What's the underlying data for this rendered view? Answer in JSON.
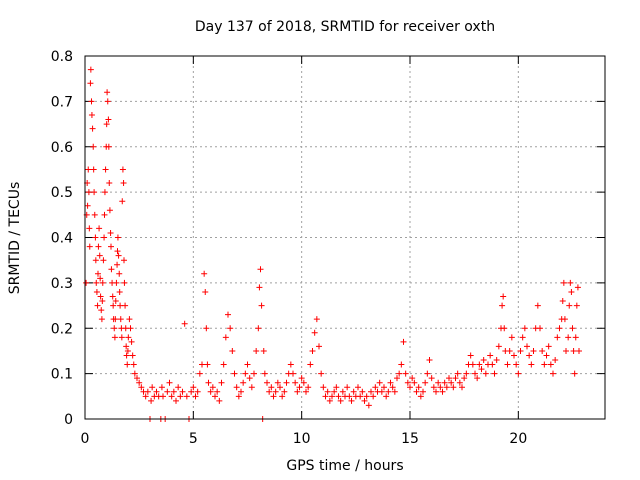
{
  "chart_data": {
    "type": "scatter",
    "title": "Day 137 of 2018, SRMTID for receiver oxth",
    "xlabel": "GPS time / hours",
    "ylabel": "SRMTID / TECUs",
    "xlim": [
      0,
      24
    ],
    "ylim": [
      0,
      0.8
    ],
    "xticks": [
      0,
      5,
      10,
      15,
      20
    ],
    "yticks": [
      0,
      0.1,
      0.2,
      0.3,
      0.4,
      0.5,
      0.6,
      0.7,
      0.8
    ],
    "xtick_labels": [
      "0",
      "5",
      "10",
      "15",
      "20"
    ],
    "ytick_labels": [
      "0",
      "0.1",
      "0.2",
      "0.3",
      "0.4",
      "0.5",
      "0.6",
      "0.7",
      "0.8"
    ],
    "grid": true,
    "marker": "+",
    "color": "#ff0000",
    "series": [
      {
        "name": "SRMTID",
        "points": [
          [
            0.05,
            0.3
          ],
          [
            0.08,
            0.45
          ],
          [
            0.1,
            0.52
          ],
          [
            0.12,
            0.47
          ],
          [
            0.15,
            0.55
          ],
          [
            0.18,
            0.5
          ],
          [
            0.2,
            0.42
          ],
          [
            0.22,
            0.38
          ],
          [
            0.25,
            0.74
          ],
          [
            0.27,
            0.77
          ],
          [
            0.3,
            0.7
          ],
          [
            0.32,
            0.67
          ],
          [
            0.35,
            0.64
          ],
          [
            0.38,
            0.6
          ],
          [
            0.4,
            0.55
          ],
          [
            0.42,
            0.5
          ],
          [
            0.45,
            0.45
          ],
          [
            0.48,
            0.4
          ],
          [
            0.5,
            0.35
          ],
          [
            0.52,
            0.3
          ],
          [
            0.55,
            0.28
          ],
          [
            0.58,
            0.25
          ],
          [
            0.6,
            0.32
          ],
          [
            0.62,
            0.38
          ],
          [
            0.65,
            0.42
          ],
          [
            0.68,
            0.36
          ],
          [
            0.7,
            0.31
          ],
          [
            0.72,
            0.27
          ],
          [
            0.75,
            0.24
          ],
          [
            0.78,
            0.22
          ],
          [
            0.8,
            0.26
          ],
          [
            0.82,
            0.3
          ],
          [
            0.85,
            0.35
          ],
          [
            0.88,
            0.4
          ],
          [
            0.9,
            0.45
          ],
          [
            0.92,
            0.5
          ],
          [
            0.95,
            0.55
          ],
          [
            0.98,
            0.6
          ],
          [
            1.0,
            0.65
          ],
          [
            1.02,
            0.72
          ],
          [
            1.05,
            0.7
          ],
          [
            1.08,
            0.66
          ],
          [
            1.1,
            0.6
          ],
          [
            1.12,
            0.52
          ],
          [
            1.15,
            0.46
          ],
          [
            1.18,
            0.41
          ],
          [
            1.2,
            0.38
          ],
          [
            1.22,
            0.33
          ],
          [
            1.25,
            0.3
          ],
          [
            1.28,
            0.27
          ],
          [
            1.3,
            0.25
          ],
          [
            1.32,
            0.22
          ],
          [
            1.35,
            0.2
          ],
          [
            1.38,
            0.18
          ],
          [
            1.4,
            0.22
          ],
          [
            1.42,
            0.26
          ],
          [
            1.45,
            0.3
          ],
          [
            1.48,
            0.34
          ],
          [
            1.5,
            0.37
          ],
          [
            1.52,
            0.4
          ],
          [
            1.55,
            0.36
          ],
          [
            1.58,
            0.32
          ],
          [
            1.6,
            0.28
          ],
          [
            1.62,
            0.25
          ],
          [
            1.65,
            0.22
          ],
          [
            1.68,
            0.2
          ],
          [
            1.7,
            0.18
          ],
          [
            1.72,
            0.48
          ],
          [
            1.75,
            0.55
          ],
          [
            1.78,
            0.52
          ],
          [
            1.8,
            0.35
          ],
          [
            1.82,
            0.3
          ],
          [
            1.85,
            0.25
          ],
          [
            1.88,
            0.2
          ],
          [
            1.9,
            0.16
          ],
          [
            1.92,
            0.14
          ],
          [
            1.95,
            0.12
          ],
          [
            1.98,
            0.15
          ],
          [
            2.0,
            0.18
          ],
          [
            2.05,
            0.22
          ],
          [
            2.1,
            0.2
          ],
          [
            2.15,
            0.17
          ],
          [
            2.2,
            0.14
          ],
          [
            2.25,
            0.12
          ],
          [
            2.3,
            0.1
          ],
          [
            2.4,
            0.09
          ],
          [
            2.5,
            0.08
          ],
          [
            2.6,
            0.07
          ],
          [
            2.7,
            0.06
          ],
          [
            2.8,
            0.05
          ],
          [
            2.9,
            0.06
          ],
          [
            3.0,
            0.0
          ],
          [
            3.05,
            0.04
          ],
          [
            3.1,
            0.07
          ],
          [
            3.2,
            0.05
          ],
          [
            3.3,
            0.06
          ],
          [
            3.4,
            0.05
          ],
          [
            3.5,
            0.0
          ],
          [
            3.55,
            0.07
          ],
          [
            3.6,
            0.05
          ],
          [
            3.7,
            0.0
          ],
          [
            3.8,
            0.06
          ],
          [
            3.9,
            0.08
          ],
          [
            4.0,
            0.05
          ],
          [
            4.1,
            0.06
          ],
          [
            4.2,
            0.04
          ],
          [
            4.3,
            0.07
          ],
          [
            4.4,
            0.05
          ],
          [
            4.5,
            0.06
          ],
          [
            4.6,
            0.21
          ],
          [
            4.7,
            0.05
          ],
          [
            4.8,
            0.0
          ],
          [
            4.9,
            0.06
          ],
          [
            5.0,
            0.07
          ],
          [
            5.1,
            0.05
          ],
          [
            5.2,
            0.06
          ],
          [
            5.3,
            0.1
          ],
          [
            5.4,
            0.12
          ],
          [
            5.5,
            0.32
          ],
          [
            5.55,
            0.28
          ],
          [
            5.6,
            0.2
          ],
          [
            5.65,
            0.12
          ],
          [
            5.7,
            0.08
          ],
          [
            5.8,
            0.06
          ],
          [
            5.9,
            0.07
          ],
          [
            6.0,
            0.05
          ],
          [
            6.1,
            0.06
          ],
          [
            6.2,
            0.04
          ],
          [
            6.3,
            0.08
          ],
          [
            6.4,
            0.12
          ],
          [
            6.5,
            0.18
          ],
          [
            6.6,
            0.23
          ],
          [
            6.7,
            0.2
          ],
          [
            6.8,
            0.15
          ],
          [
            6.9,
            0.1
          ],
          [
            7.0,
            0.07
          ],
          [
            7.1,
            0.05
          ],
          [
            7.2,
            0.06
          ],
          [
            7.3,
            0.08
          ],
          [
            7.4,
            0.1
          ],
          [
            7.5,
            0.12
          ],
          [
            7.6,
            0.09
          ],
          [
            7.7,
            0.07
          ],
          [
            7.8,
            0.1
          ],
          [
            7.9,
            0.15
          ],
          [
            8.0,
            0.2
          ],
          [
            8.05,
            0.29
          ],
          [
            8.1,
            0.33
          ],
          [
            8.15,
            0.25
          ],
          [
            8.2,
            0.0
          ],
          [
            8.25,
            0.15
          ],
          [
            8.3,
            0.1
          ],
          [
            8.4,
            0.08
          ],
          [
            8.5,
            0.06
          ],
          [
            8.6,
            0.07
          ],
          [
            8.7,
            0.05
          ],
          [
            8.8,
            0.06
          ],
          [
            8.9,
            0.08
          ],
          [
            9.0,
            0.07
          ],
          [
            9.1,
            0.05
          ],
          [
            9.2,
            0.06
          ],
          [
            9.3,
            0.08
          ],
          [
            9.4,
            0.1
          ],
          [
            9.5,
            0.12
          ],
          [
            9.6,
            0.1
          ],
          [
            9.7,
            0.08
          ],
          [
            9.8,
            0.06
          ],
          [
            9.9,
            0.07
          ],
          [
            10.0,
            0.09
          ],
          [
            10.1,
            0.08
          ],
          [
            10.2,
            0.06
          ],
          [
            10.3,
            0.07
          ],
          [
            10.4,
            0.12
          ],
          [
            10.5,
            0.15
          ],
          [
            10.6,
            0.19
          ],
          [
            10.7,
            0.22
          ],
          [
            10.8,
            0.16
          ],
          [
            10.9,
            0.1
          ],
          [
            11.0,
            0.07
          ],
          [
            11.1,
            0.05
          ],
          [
            11.2,
            0.06
          ],
          [
            11.3,
            0.04
          ],
          [
            11.4,
            0.05
          ],
          [
            11.5,
            0.06
          ],
          [
            11.6,
            0.07
          ],
          [
            11.7,
            0.05
          ],
          [
            11.8,
            0.04
          ],
          [
            11.9,
            0.06
          ],
          [
            12.0,
            0.05
          ],
          [
            12.1,
            0.07
          ],
          [
            12.2,
            0.05
          ],
          [
            12.3,
            0.04
          ],
          [
            12.4,
            0.06
          ],
          [
            12.5,
            0.05
          ],
          [
            12.6,
            0.07
          ],
          [
            12.7,
            0.05
          ],
          [
            12.8,
            0.06
          ],
          [
            12.9,
            0.04
          ],
          [
            13.0,
            0.05
          ],
          [
            13.1,
            0.03
          ],
          [
            13.2,
            0.06
          ],
          [
            13.3,
            0.05
          ],
          [
            13.4,
            0.07
          ],
          [
            13.5,
            0.06
          ],
          [
            13.6,
            0.08
          ],
          [
            13.7,
            0.06
          ],
          [
            13.8,
            0.07
          ],
          [
            13.9,
            0.05
          ],
          [
            14.0,
            0.06
          ],
          [
            14.1,
            0.08
          ],
          [
            14.2,
            0.07
          ],
          [
            14.3,
            0.06
          ],
          [
            14.4,
            0.09
          ],
          [
            14.5,
            0.1
          ],
          [
            14.6,
            0.12
          ],
          [
            14.7,
            0.17
          ],
          [
            14.8,
            0.1
          ],
          [
            14.9,
            0.08
          ],
          [
            15.0,
            0.07
          ],
          [
            15.1,
            0.09
          ],
          [
            15.2,
            0.08
          ],
          [
            15.3,
            0.06
          ],
          [
            15.4,
            0.07
          ],
          [
            15.5,
            0.05
          ],
          [
            15.6,
            0.06
          ],
          [
            15.7,
            0.08
          ],
          [
            15.8,
            0.1
          ],
          [
            15.9,
            0.13
          ],
          [
            16.0,
            0.09
          ],
          [
            16.1,
            0.07
          ],
          [
            16.2,
            0.06
          ],
          [
            16.3,
            0.08
          ],
          [
            16.4,
            0.07
          ],
          [
            16.5,
            0.06
          ],
          [
            16.6,
            0.08
          ],
          [
            16.7,
            0.07
          ],
          [
            16.8,
            0.09
          ],
          [
            16.9,
            0.08
          ],
          [
            17.0,
            0.07
          ],
          [
            17.1,
            0.09
          ],
          [
            17.2,
            0.1
          ],
          [
            17.3,
            0.08
          ],
          [
            17.4,
            0.07
          ],
          [
            17.5,
            0.09
          ],
          [
            17.6,
            0.1
          ],
          [
            17.7,
            0.12
          ],
          [
            17.8,
            0.14
          ],
          [
            17.9,
            0.12
          ],
          [
            18.0,
            0.1
          ],
          [
            18.1,
            0.09
          ],
          [
            18.2,
            0.12
          ],
          [
            18.3,
            0.11
          ],
          [
            18.4,
            0.13
          ],
          [
            18.5,
            0.1
          ],
          [
            18.6,
            0.12
          ],
          [
            18.7,
            0.14
          ],
          [
            18.8,
            0.12
          ],
          [
            18.9,
            0.1
          ],
          [
            19.0,
            0.13
          ],
          [
            19.1,
            0.16
          ],
          [
            19.2,
            0.2
          ],
          [
            19.25,
            0.25
          ],
          [
            19.3,
            0.27
          ],
          [
            19.35,
            0.2
          ],
          [
            19.4,
            0.15
          ],
          [
            19.5,
            0.12
          ],
          [
            19.6,
            0.15
          ],
          [
            19.7,
            0.18
          ],
          [
            19.8,
            0.14
          ],
          [
            19.9,
            0.12
          ],
          [
            20.0,
            0.1
          ],
          [
            20.1,
            0.15
          ],
          [
            20.2,
            0.18
          ],
          [
            20.3,
            0.2
          ],
          [
            20.4,
            0.16
          ],
          [
            20.5,
            0.14
          ],
          [
            20.6,
            0.12
          ],
          [
            20.7,
            0.15
          ],
          [
            20.8,
            0.2
          ],
          [
            20.9,
            0.25
          ],
          [
            21.0,
            0.2
          ],
          [
            21.1,
            0.15
          ],
          [
            21.2,
            0.12
          ],
          [
            21.3,
            0.14
          ],
          [
            21.4,
            0.16
          ],
          [
            21.5,
            0.12
          ],
          [
            21.6,
            0.1
          ],
          [
            21.7,
            0.13
          ],
          [
            21.8,
            0.18
          ],
          [
            21.9,
            0.2
          ],
          [
            22.0,
            0.22
          ],
          [
            22.05,
            0.26
          ],
          [
            22.1,
            0.3
          ],
          [
            22.15,
            0.22
          ],
          [
            22.2,
            0.15
          ],
          [
            22.3,
            0.18
          ],
          [
            22.35,
            0.25
          ],
          [
            22.4,
            0.3
          ],
          [
            22.45,
            0.28
          ],
          [
            22.5,
            0.2
          ],
          [
            22.55,
            0.15
          ],
          [
            22.6,
            0.1
          ],
          [
            22.65,
            0.18
          ],
          [
            22.7,
            0.25
          ],
          [
            22.75,
            0.29
          ],
          [
            22.8,
            0.15
          ]
        ]
      }
    ]
  }
}
